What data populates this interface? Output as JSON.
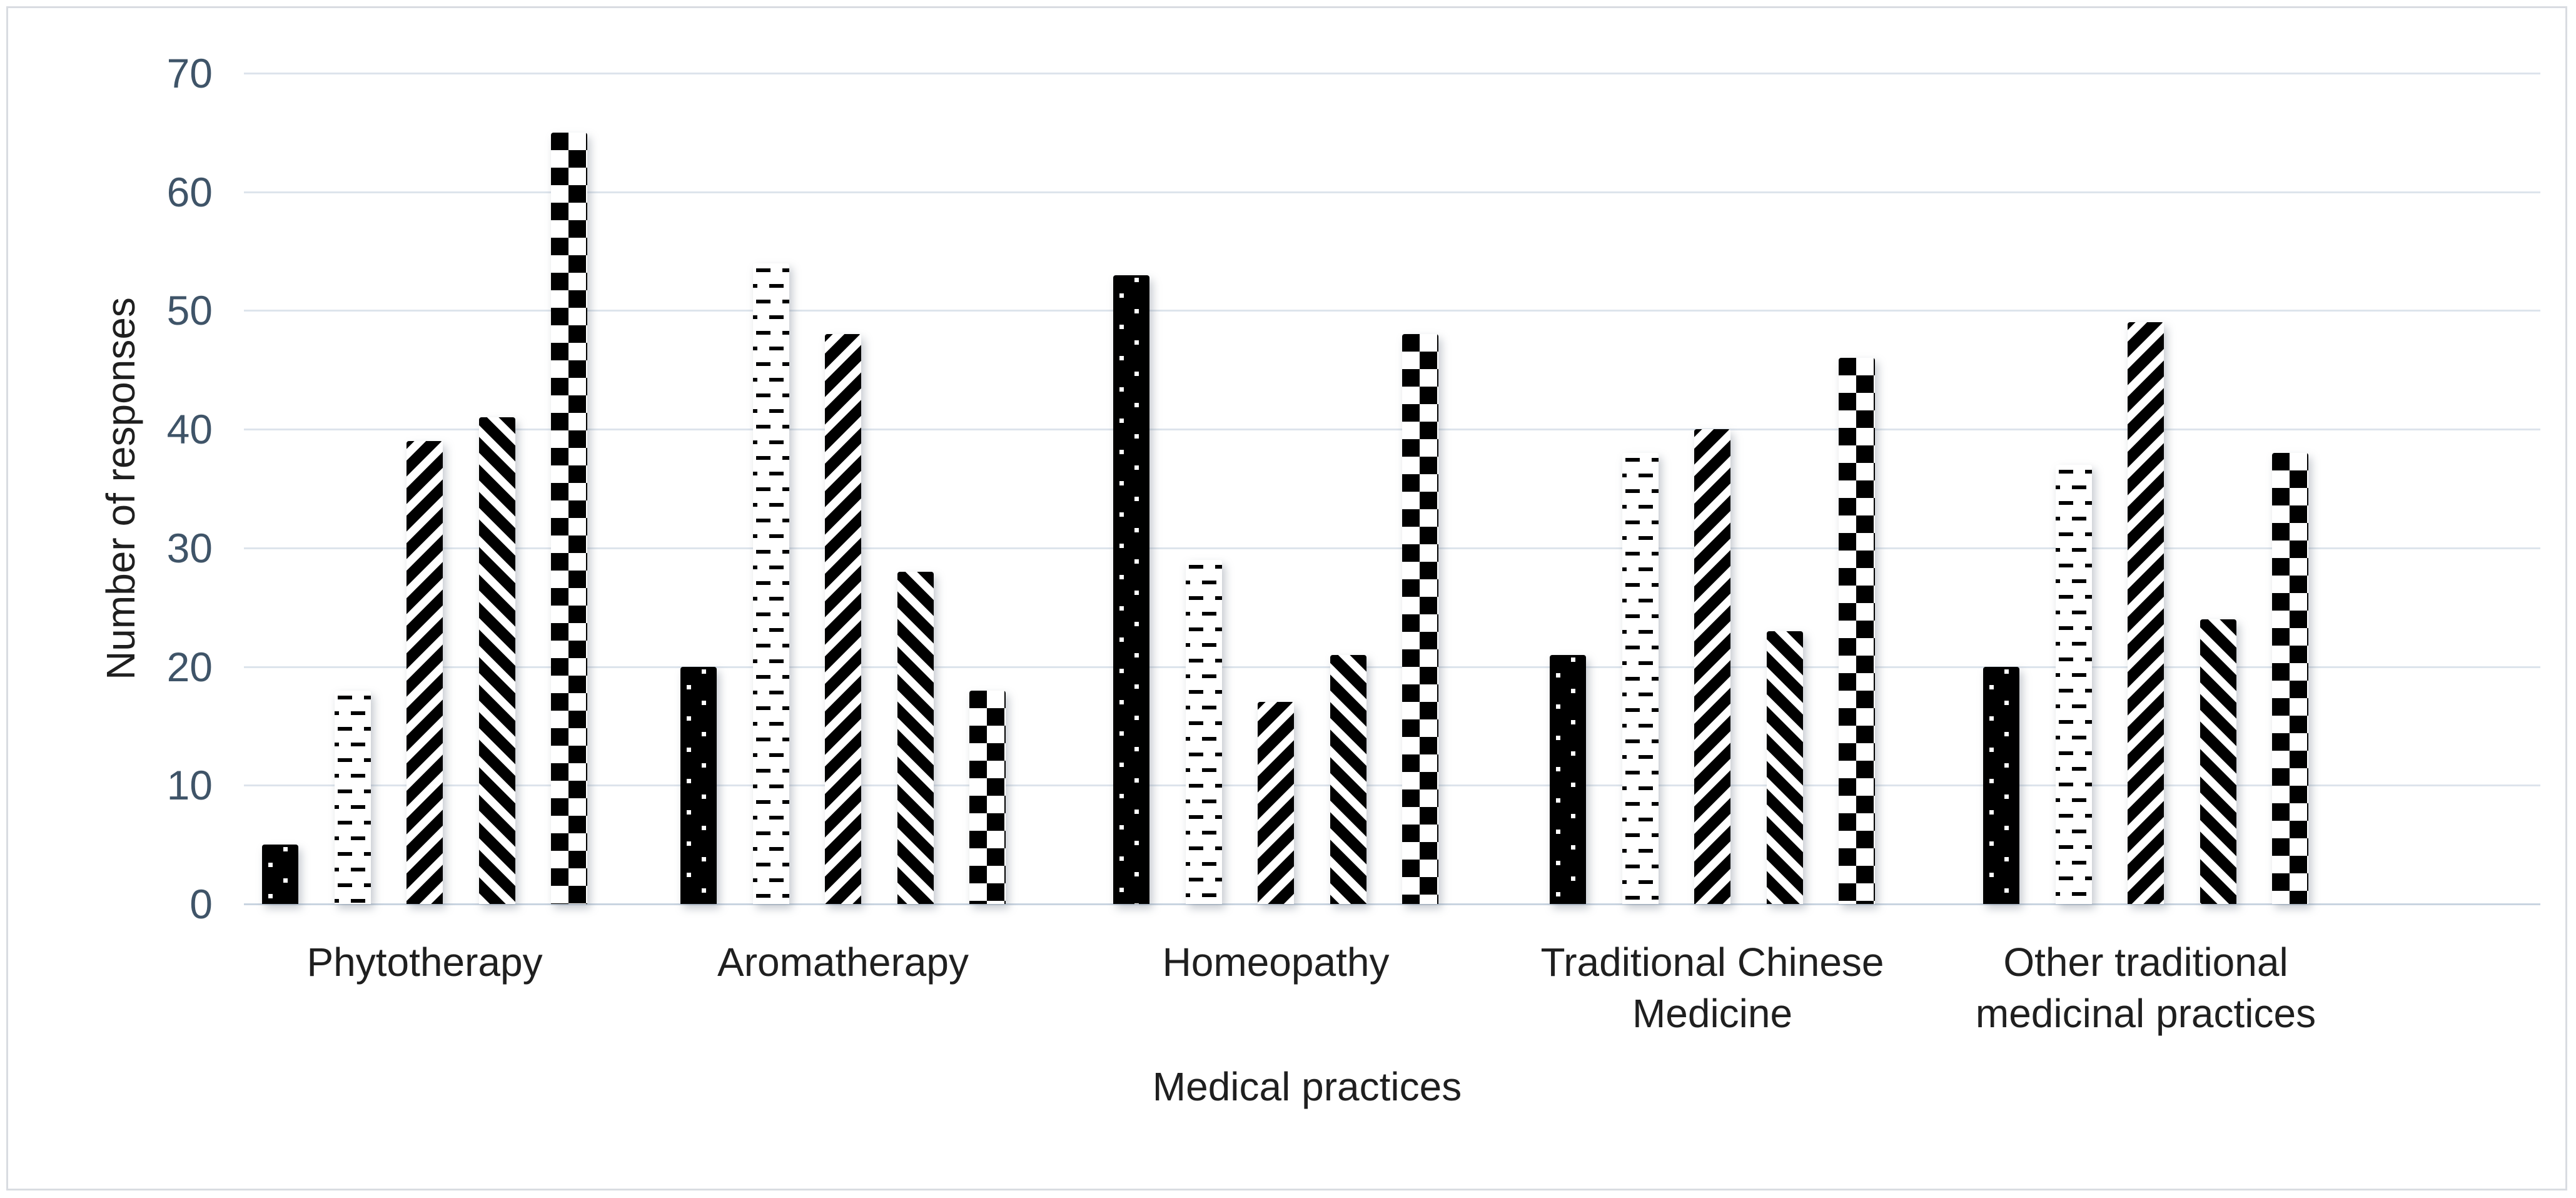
{
  "chart_data": {
    "type": "bar",
    "title": "",
    "categories": [
      "Phytotherapy",
      "Aromatherapy",
      "Homeopathy",
      "Traditional Chinese\nMedicine",
      "Other traditional\nmedicinal practices"
    ],
    "series": [
      {
        "name": "solid-black-white-dots",
        "pattern": "dots-on-black",
        "values": [
          5,
          20,
          53,
          21,
          20
        ]
      },
      {
        "name": "horizontal-dashes",
        "pattern": "dashed-horizontal",
        "values": [
          18,
          54,
          29,
          38,
          37
        ]
      },
      {
        "name": "diagonal-stripes-up",
        "pattern": "diagonal-up",
        "values": [
          39,
          48,
          17,
          40,
          49
        ]
      },
      {
        "name": "diagonal-stripes-down",
        "pattern": "diagonal-down",
        "values": [
          41,
          28,
          21,
          23,
          24
        ]
      },
      {
        "name": "checkerboard",
        "pattern": "checker",
        "values": [
          65,
          18,
          48,
          46,
          38
        ]
      }
    ],
    "xlabel": "Medical practices",
    "ylabel": "Number of responses",
    "ylim": [
      0,
      70
    ],
    "yticks": [
      0,
      10,
      20,
      30,
      40,
      50,
      60,
      70
    ],
    "grid": true,
    "legend": "none",
    "colors": {
      "bar_black": "#000000",
      "bar_white": "#ffffff",
      "tick_label": "#3f5468",
      "axis_text": "#1f1f1f",
      "gridline": "#dde4ec",
      "axis_line": "#c9d4e0",
      "chart_border": "#d9dce1",
      "background": "#ffffff"
    }
  }
}
